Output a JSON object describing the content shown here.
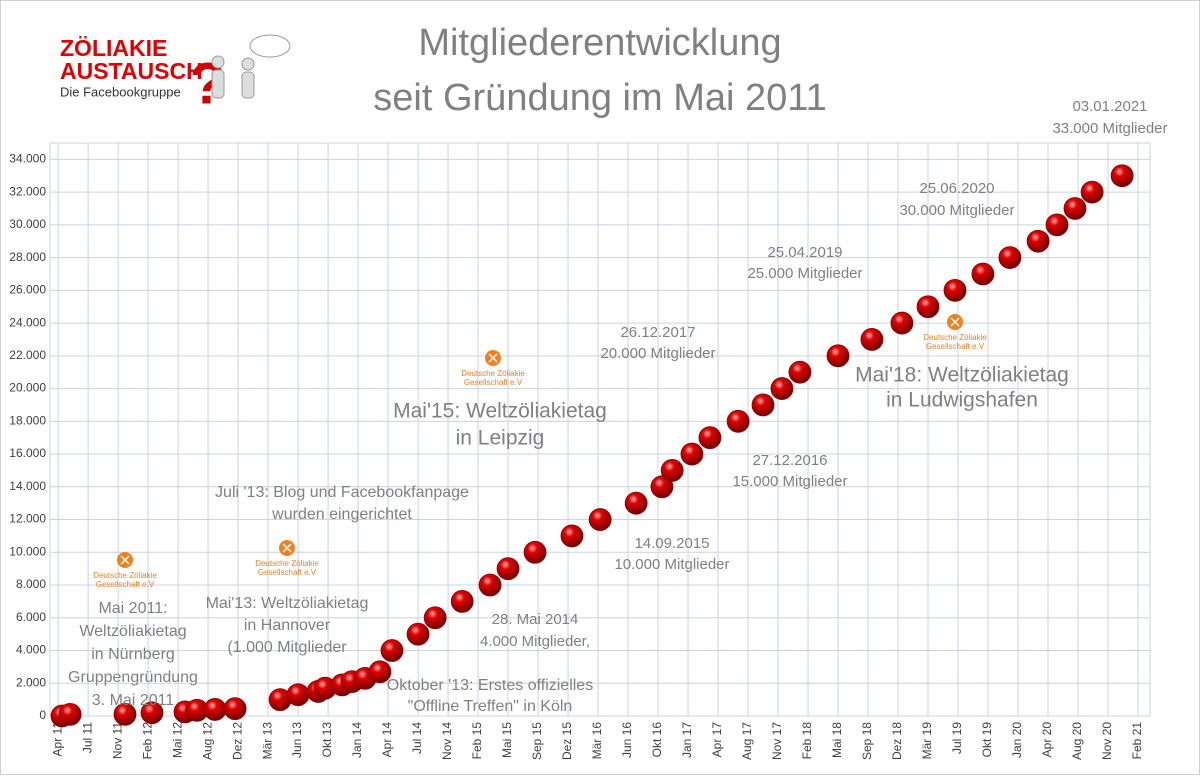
{
  "chart_data": {
    "type": "scatter",
    "title": [
      "Mitgliederentwicklung",
      "seit Gründung im Mai 2011"
    ],
    "brand": [
      "ZÖLIAKIE",
      "AUSTAUSCH",
      "Die Facebookgruppe"
    ],
    "partner_logo": [
      "Deutsche Zöliakie",
      "Gesellschaft  e.V"
    ],
    "color": "#e00000",
    "grid": true,
    "xlim": [
      -0.27,
      36.4
    ],
    "ylim": [
      0,
      35000
    ],
    "xticks": [
      {
        "value": 0,
        "label": "Apr 11"
      },
      {
        "value": 1,
        "label": "Jul 11"
      },
      {
        "value": 2,
        "label": "Nov 11"
      },
      {
        "value": 3,
        "label": "Feb 12"
      },
      {
        "value": 4,
        "label": "Mai 12"
      },
      {
        "value": 5,
        "label": "Aug 12"
      },
      {
        "value": 6,
        "label": "Dez 12"
      },
      {
        "value": 7,
        "label": "Mär 13"
      },
      {
        "value": 8,
        "label": "Jun 13"
      },
      {
        "value": 9,
        "label": "Okt 13"
      },
      {
        "value": 10,
        "label": "Jan 14"
      },
      {
        "value": 11,
        "label": "Apr 14"
      },
      {
        "value": 12,
        "label": "Jul 14"
      },
      {
        "value": 13,
        "label": "Nov 14"
      },
      {
        "value": 14,
        "label": "Feb 15"
      },
      {
        "value": 15,
        "label": "Mai 15"
      },
      {
        "value": 16,
        "label": "Sep 15"
      },
      {
        "value": 17,
        "label": "Dez 15"
      },
      {
        "value": 18,
        "label": "Mär 16"
      },
      {
        "value": 19,
        "label": "Jun 16"
      },
      {
        "value": 20,
        "label": "Okt 16"
      },
      {
        "value": 21,
        "label": "Jan 17"
      },
      {
        "value": 22,
        "label": "Apr 17"
      },
      {
        "value": 23,
        "label": "Aug 17"
      },
      {
        "value": 24,
        "label": "Nov 17"
      },
      {
        "value": 25,
        "label": "Feb 18"
      },
      {
        "value": 26,
        "label": "Mai 18"
      },
      {
        "value": 27,
        "label": "Sep 18"
      },
      {
        "value": 28,
        "label": "Dez 18"
      },
      {
        "value": 29,
        "label": "Mär 19"
      },
      {
        "value": 30,
        "label": "Jul 19"
      },
      {
        "value": 31,
        "label": "Okt 19"
      },
      {
        "value": 32,
        "label": "Jan 20"
      },
      {
        "value": 33,
        "label": "Apr 20"
      },
      {
        "value": 34,
        "label": "Aug 20"
      },
      {
        "value": 35,
        "label": "Nov 20"
      },
      {
        "value": 36,
        "label": "Feb 21"
      }
    ],
    "yticks": [
      0,
      {
        "value": 2000,
        "label": "2.000"
      },
      {
        "value": 4000,
        "label": "4.000"
      },
      {
        "value": 6000,
        "label": "6.000"
      },
      {
        "value": 8000,
        "label": "8.000"
      },
      {
        "value": 10000,
        "label": "10.000"
      },
      {
        "value": 12000,
        "label": "12.000"
      },
      {
        "value": 14000,
        "label": "14.000"
      },
      {
        "value": 16000,
        "label": "16.000"
      },
      {
        "value": 18000,
        "label": "18.000"
      },
      {
        "value": 20000,
        "label": "20.000"
      },
      {
        "value": 22000,
        "label": "22.000"
      },
      {
        "value": 24000,
        "label": "24.000"
      },
      {
        "value": 26000,
        "label": "26.000"
      },
      {
        "value": 28000,
        "label": "28.000"
      },
      {
        "value": 30000,
        "label": "30.000"
      },
      {
        "value": 32000,
        "label": "32.000"
      },
      {
        "value": 34000,
        "label": "34.000"
      }
    ],
    "x": [
      0.13,
      0.4,
      2.23,
      3.13,
      4.23,
      4.63,
      5.23,
      5.9,
      7.4,
      8,
      8.67,
      8.9,
      9.47,
      9.8,
      10.23,
      10.73,
      11.13,
      12,
      12.57,
      13.47,
      14.4,
      15,
      15.9,
      17.13,
      18.07,
      19.27,
      20.13,
      20.47,
      21.13,
      21.73,
      22.67,
      23.5,
      24.13,
      24.73,
      26,
      27.13,
      28.13,
      29,
      29.9,
      30.83,
      31.73,
      32.67,
      33.3,
      33.9,
      34.47,
      35.47
    ],
    "values": [
      0,
      100,
      100,
      200,
      250,
      350,
      400,
      450,
      1000,
      1300,
      1500,
      1700,
      1900,
      2100,
      2300,
      2700,
      4000,
      5000,
      6000,
      7000,
      8000,
      9000,
      10000,
      11000,
      12000,
      13000,
      14000,
      15000,
      16000,
      17000,
      18000,
      19000,
      20000,
      21000,
      22000,
      23000,
      24000,
      25000,
      26000,
      27000,
      28000,
      29000,
      30000,
      31000,
      32000,
      33000
    ],
    "annotations": [
      [
        "Mai 2011:",
        "Weltzöliakietag",
        "in Nürnberg",
        "Gruppengründung",
        "3. Mai 2011"
      ],
      [
        "Mai'13: Weltzöliakietag",
        "in Hannover",
        "(1.000 Mitglieder"
      ],
      [
        "Juli '13: Blog und Facebookfanpage",
        "wurden eingerichtet"
      ],
      [
        "Oktober '13: Erstes offizielles",
        "\"Offline Treffen\" in Köln"
      ],
      [
        "28. Mai 2014",
        "4.000 Mitglieder,"
      ],
      [
        "Mai'15: Weltzöliakietag",
        "in Leipzig"
      ],
      [
        "14.09.2015",
        "10.000 Mitglieder"
      ],
      [
        "27.12.2016",
        "15.000 Mitglieder"
      ],
      [
        "26.12.2017",
        "20.000 Mitglieder"
      ],
      [
        "Mai'18: Weltzöliakietag",
        "in Ludwigshafen"
      ],
      [
        "25.04.2019",
        "25.000 Mitglieder"
      ],
      [
        "25.06.2020",
        "30.000 Mitglieder"
      ],
      [
        "03.01.2021",
        "33.000 Mitglieder"
      ]
    ]
  }
}
